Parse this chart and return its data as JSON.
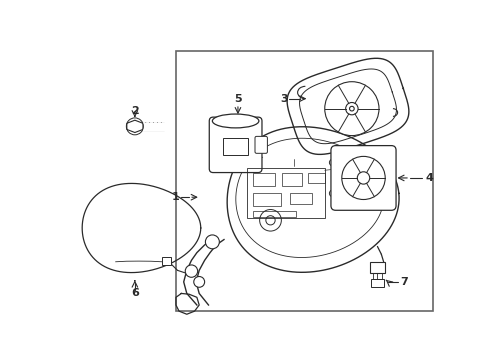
{
  "bg_color": "#ffffff",
  "line_color": "#2a2a2a",
  "box_color": "#666666",
  "fig_width": 4.9,
  "fig_height": 3.6,
  "dpi": 100
}
